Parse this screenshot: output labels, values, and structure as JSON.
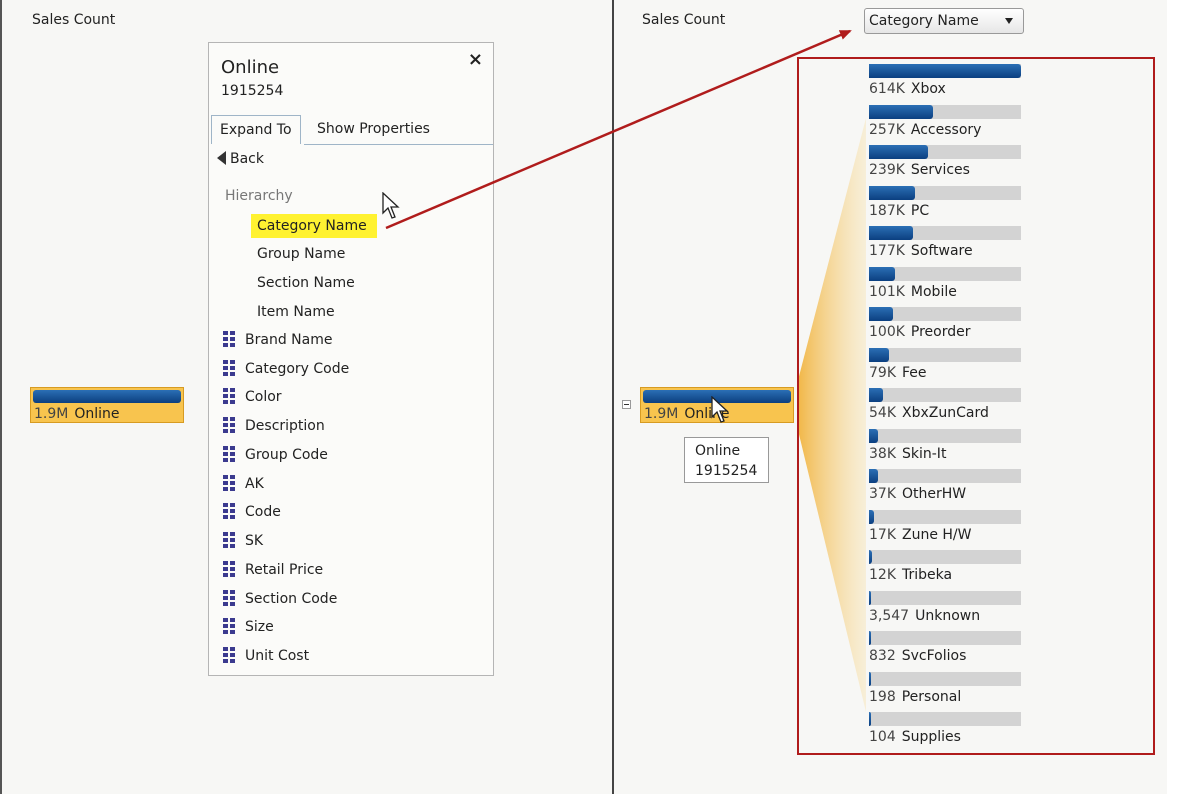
{
  "left_pane": {
    "title": "Sales Count",
    "root_node": {
      "value": "1.9M",
      "label": "Online"
    },
    "popup": {
      "title": "Online",
      "value": "1915254",
      "tabs": [
        {
          "label": "Expand To"
        },
        {
          "label": "Show Properties"
        }
      ],
      "back_label": "Back",
      "hierarchy_label": "Hierarchy",
      "hierarchy_items": [
        {
          "label": "Category Name",
          "highlighted": true
        },
        {
          "label": "Group Name"
        },
        {
          "label": "Section Name"
        },
        {
          "label": "Item Name"
        }
      ],
      "fields": [
        "Brand Name",
        "Category Code",
        "Color",
        "Description",
        "Group Code",
        "AK",
        "Code",
        "SK",
        "Retail Price",
        "Section Code",
        "Size",
        "Unit Cost"
      ]
    }
  },
  "right_pane": {
    "title": "Sales Count",
    "dropdown": {
      "selected": "Category Name"
    },
    "root_node": {
      "value": "1.9M",
      "label": "Online"
    },
    "tooltip": {
      "title": "Online",
      "value": "1915254"
    },
    "children": [
      {
        "value": "614K",
        "label": "Xbox",
        "fill": 1.0
      },
      {
        "value": "257K",
        "label": "Accessory",
        "fill": 0.42
      },
      {
        "value": "239K",
        "label": "Services",
        "fill": 0.39
      },
      {
        "value": "187K",
        "label": "PC",
        "fill": 0.3
      },
      {
        "value": "177K",
        "label": "Software",
        "fill": 0.29
      },
      {
        "value": "101K",
        "label": "Mobile",
        "fill": 0.17
      },
      {
        "value": "100K",
        "label": "Preorder",
        "fill": 0.16
      },
      {
        "value": "79K",
        "label": "Fee",
        "fill": 0.13
      },
      {
        "value": "54K",
        "label": "XbxZunCard",
        "fill": 0.09
      },
      {
        "value": "38K",
        "label": "Skin-It",
        "fill": 0.06
      },
      {
        "value": "37K",
        "label": "OtherHW",
        "fill": 0.06
      },
      {
        "value": "17K",
        "label": "Zune H/W",
        "fill": 0.03
      },
      {
        "value": "12K",
        "label": "Tribeka",
        "fill": 0.02
      },
      {
        "value": "3,547",
        "label": "Unknown",
        "fill": 0.006
      },
      {
        "value": "832",
        "label": "SvcFolios",
        "fill": 0.002
      },
      {
        "value": "198",
        "label": "Personal",
        "fill": 0.001
      },
      {
        "value": "104",
        "label": "Supplies",
        "fill": 0.001
      }
    ]
  },
  "colors": {
    "bar_fill": "#0b4a8c",
    "bar_track": "#d3d3d3",
    "node_bg": "#f8c44e",
    "highlight": "#fff231",
    "annotation_red": "#b01c1c"
  }
}
